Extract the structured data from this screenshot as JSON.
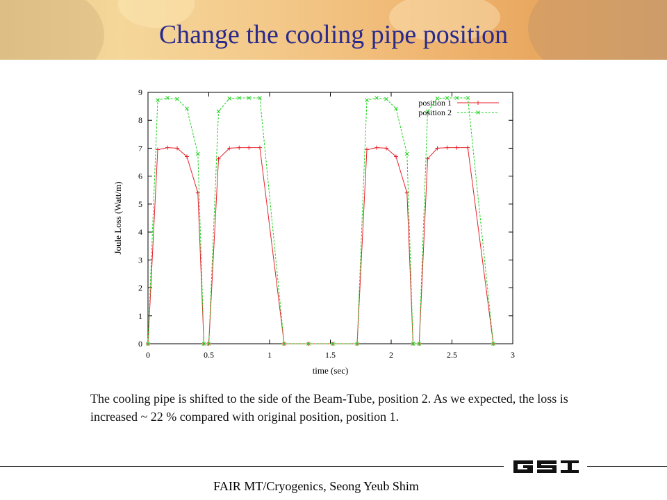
{
  "slide": {
    "title": "Change the cooling pipe position",
    "caption": "The cooling pipe is shifted to the side of the Beam-Tube, position 2. As we expected, the loss is increased ~ 22 % compared with original position, position 1.",
    "footer": "FAIR MT/Cryogenics,   Seong Yeub Shim",
    "logo_text": "GSI"
  },
  "colors": {
    "title": "#2a2a8c",
    "position1": "#e8202a",
    "position2": "#1ed21e"
  },
  "chart_data": {
    "type": "line",
    "xlabel": "time (sec)",
    "ylabel": "Joule Loss (Watt/m)",
    "xlim": [
      0,
      3
    ],
    "ylim": [
      0,
      9
    ],
    "xticks": [
      0,
      0.5,
      1,
      1.5,
      2,
      2.5,
      3
    ],
    "xtick_labels": [
      "0",
      "0.5",
      "1",
      "1.5",
      "2",
      "2.5",
      "3"
    ],
    "yticks": [
      0,
      1,
      2,
      3,
      4,
      5,
      6,
      7,
      8,
      9
    ],
    "ytick_labels": [
      "0",
      "1",
      "2",
      "3",
      "4",
      "5",
      "6",
      "7",
      "8",
      "9"
    ],
    "grid": false,
    "legend": "top-right",
    "series": [
      {
        "name": "position 1",
        "marker": "plus",
        "x": [
          0,
          0.08,
          0.16,
          0.24,
          0.32,
          0.41,
          0.46,
          0.5,
          0.58,
          0.67,
          0.75,
          0.83,
          0.92,
          1.12,
          1.32,
          1.52,
          1.72,
          1.8,
          1.88,
          1.96,
          2.04,
          2.13,
          2.18,
          2.23,
          2.3,
          2.38,
          2.46,
          2.54,
          2.63,
          2.84
        ],
        "values": [
          0,
          6.95,
          7.02,
          7.0,
          6.7,
          5.4,
          0,
          0,
          6.62,
          7.0,
          7.02,
          7.02,
          7.02,
          0,
          0,
          0,
          0,
          6.95,
          7.02,
          7.0,
          6.7,
          5.4,
          0,
          0,
          6.62,
          7.0,
          7.02,
          7.02,
          7.02,
          0
        ]
      },
      {
        "name": "position 2",
        "marker": "x",
        "x": [
          0,
          0.08,
          0.16,
          0.24,
          0.32,
          0.41,
          0.46,
          0.5,
          0.58,
          0.67,
          0.75,
          0.83,
          0.92,
          1.12,
          1.32,
          1.52,
          1.72,
          1.8,
          1.88,
          1.96,
          2.04,
          2.13,
          2.18,
          2.23,
          2.3,
          2.38,
          2.46,
          2.54,
          2.63,
          2.84
        ],
        "values": [
          0,
          8.72,
          8.8,
          8.76,
          8.42,
          6.8,
          0,
          0,
          8.32,
          8.78,
          8.8,
          8.8,
          8.8,
          0,
          0,
          0,
          0,
          8.72,
          8.8,
          8.76,
          8.42,
          6.8,
          0,
          0,
          8.32,
          8.78,
          8.8,
          8.8,
          8.8,
          0
        ]
      }
    ]
  }
}
